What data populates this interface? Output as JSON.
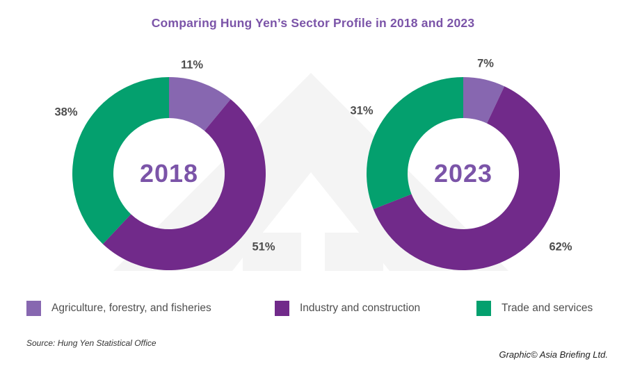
{
  "title": "Comparing Hung Yen’s Sector Profile in 2018 and 2023",
  "chart_data": [
    {
      "type": "pie",
      "subtype": "donut",
      "center_label": "2018",
      "categories": [
        "Agriculture, forestry, and fisheries",
        "Industry and construction",
        "Trade and services"
      ],
      "values": [
        11,
        51,
        38
      ],
      "labels": [
        "11%",
        "51%",
        "38%"
      ],
      "unit": "percent",
      "start_angle_deg": 0,
      "direction": "clockwise"
    },
    {
      "type": "pie",
      "subtype": "donut",
      "center_label": "2023",
      "categories": [
        "Agriculture, forestry, and fisheries",
        "Industry and construction",
        "Trade and services"
      ],
      "values": [
        7,
        62,
        31
      ],
      "labels": [
        "7%",
        "62%",
        "31%"
      ],
      "unit": "percent",
      "start_angle_deg": 0,
      "direction": "clockwise"
    }
  ],
  "legend": {
    "items": [
      {
        "label": "Agriculture, forestry, and fisheries",
        "color": "#8767B0"
      },
      {
        "label": "Industry and construction",
        "color": "#712A8A"
      },
      {
        "label": "Trade and services",
        "color": "#04A06E"
      }
    ]
  },
  "footer": {
    "source": "Source: Hung Yen Statistical Office",
    "credit": "Graphic© Asia Briefing Ltd."
  },
  "colors": {
    "title_text": "#7B54A8",
    "year_text": "#7B54A8",
    "pct_text": "#4D4D4D",
    "watermark": "#F4F4F4"
  }
}
